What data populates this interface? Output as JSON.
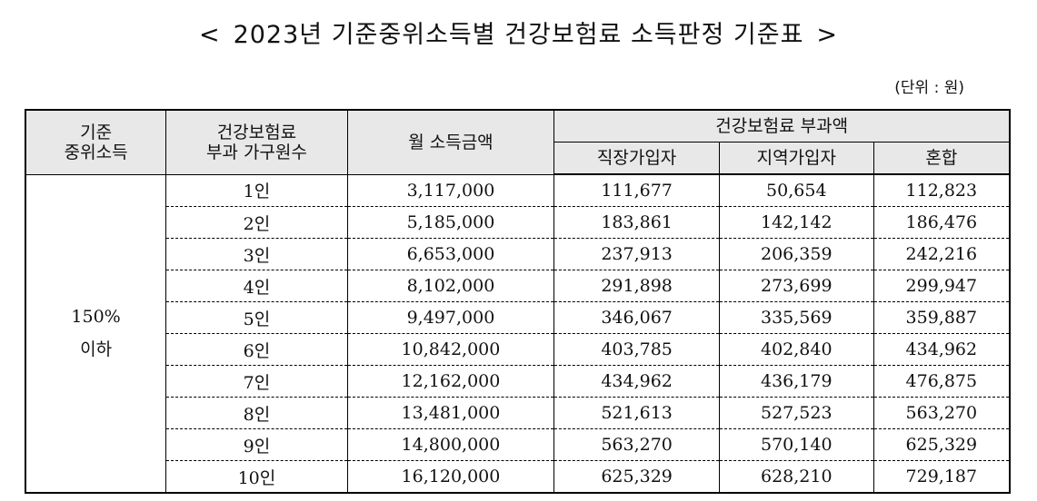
{
  "title": {
    "open": "<",
    "text": "2023년 기준중위소득별 건강보험료 소득판정 기준표",
    "close": ">"
  },
  "unit_label": "(단위 : 원)",
  "headers": {
    "median_line1": "기준",
    "median_line2": "중위소득",
    "household_line1": "건강보험료",
    "household_line2": "부과 가구원수",
    "monthly_income": "월 소득금액",
    "premium_group": "건강보험료 부과액",
    "employee": "직장가입자",
    "regional": "지역가입자",
    "mixed": "혼합"
  },
  "group": {
    "line1": "150%",
    "line2": "이하"
  },
  "rows": [
    {
      "household": "1인",
      "income": "3,117,000",
      "employee": "111,677",
      "regional": "50,654",
      "mixed": "112,823"
    },
    {
      "household": "2인",
      "income": "5,185,000",
      "employee": "183,861",
      "regional": "142,142",
      "mixed": "186,476"
    },
    {
      "household": "3인",
      "income": "6,653,000",
      "employee": "237,913",
      "regional": "206,359",
      "mixed": "242,216"
    },
    {
      "household": "4인",
      "income": "8,102,000",
      "employee": "291,898",
      "regional": "273,699",
      "mixed": "299,947"
    },
    {
      "household": "5인",
      "income": "9,497,000",
      "employee": "346,067",
      "regional": "335,569",
      "mixed": "359,887"
    },
    {
      "household": "6인",
      "income": "10,842,000",
      "employee": "403,785",
      "regional": "402,840",
      "mixed": "434,962"
    },
    {
      "household": "7인",
      "income": "12,162,000",
      "employee": "434,962",
      "regional": "436,179",
      "mixed": "476,875"
    },
    {
      "household": "8인",
      "income": "13,481,000",
      "employee": "521,613",
      "regional": "527,523",
      "mixed": "563,270"
    },
    {
      "household": "9인",
      "income": "14,800,000",
      "employee": "563,270",
      "regional": "570,140",
      "mixed": "625,329"
    },
    {
      "household": "10인",
      "income": "16,120,000",
      "employee": "625,329",
      "regional": "628,210",
      "mixed": "729,187"
    }
  ]
}
